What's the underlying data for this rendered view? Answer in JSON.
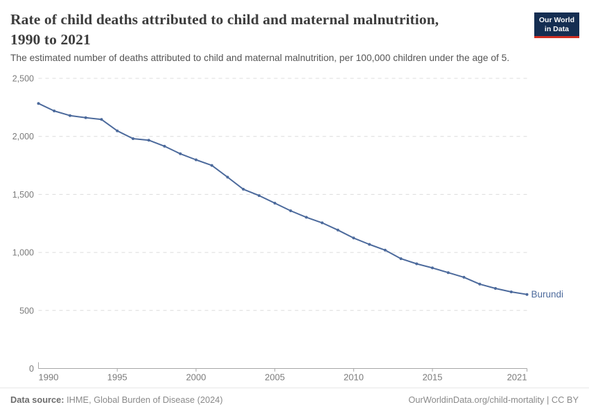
{
  "header": {
    "title_line1": "Rate of child deaths attributed to child and maternal malnutrition,",
    "title_line2": "1990 to 2021",
    "subtitle": "The estimated number of deaths attributed to child and maternal malnutrition, per 100,000 children under the age of 5."
  },
  "logo": {
    "line1": "Our World",
    "line2": "in Data",
    "bg_color": "#152e52",
    "accent_color": "#cf2e22"
  },
  "chart_data": {
    "type": "line",
    "title": "Rate of child deaths attributed to child and maternal malnutrition, 1990 to 2021",
    "xlabel": "",
    "ylabel": "",
    "x": [
      1990,
      1991,
      1992,
      1993,
      1994,
      1995,
      1996,
      1997,
      1998,
      1999,
      2000,
      2001,
      2002,
      2003,
      2004,
      2005,
      2006,
      2007,
      2008,
      2009,
      2010,
      2011,
      2012,
      2013,
      2014,
      2015,
      2016,
      2017,
      2018,
      2019,
      2020,
      2021
    ],
    "series": [
      {
        "name": "Burundi",
        "color": "#4C6A9C",
        "values": [
          2284,
          2219,
          2179,
          2161,
          2146,
          2048,
          1980,
          1967,
          1915,
          1850,
          1798,
          1750,
          1649,
          1545,
          1490,
          1425,
          1359,
          1303,
          1255,
          1193,
          1124,
          1069,
          1020,
          946,
          902,
          867,
          826,
          786,
          727,
          690,
          660,
          638
        ]
      }
    ],
    "ylim": [
      0,
      2500
    ],
    "yticks": [
      0,
      500,
      1000,
      1500,
      2000,
      2500
    ],
    "ytick_labels": [
      "0",
      "500",
      "1,000",
      "1,500",
      "2,000",
      "2,500"
    ],
    "xticks": [
      1990,
      1995,
      2000,
      2005,
      2010,
      2015,
      2021
    ],
    "xtick_labels": [
      "1990",
      "1995",
      "2000",
      "2005",
      "2010",
      "2015",
      "2021"
    ],
    "grid": "horizontal-dashed",
    "legend_position": "end-of-line-label"
  },
  "chart_style": {
    "grid_color": "#dcdcdc",
    "axis_color": "#a6a6a6",
    "tick_label_color": "#7b7b7b",
    "entity_label_color": "#4C6A9C"
  },
  "footer": {
    "source_label": "Data source:",
    "source_text": " IHME, Global Burden of Disease (2024)",
    "attribution": "OurWorldinData.org/child-mortality | CC BY"
  }
}
